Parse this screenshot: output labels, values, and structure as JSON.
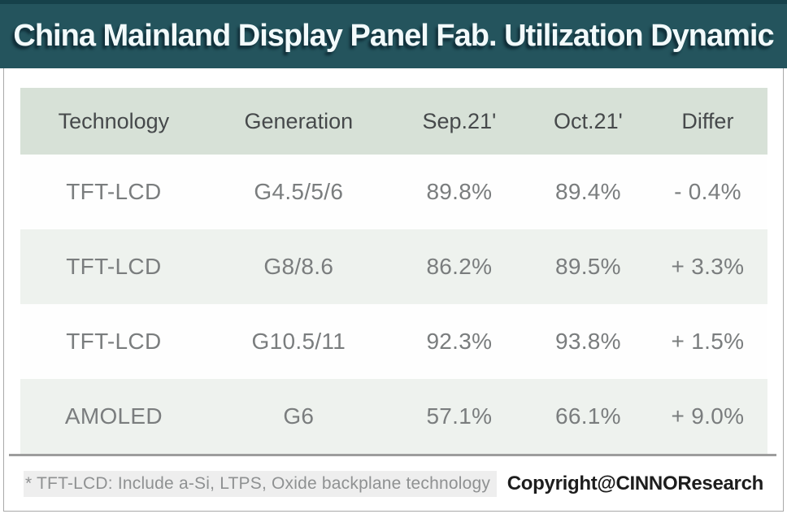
{
  "title": "China Mainland Display Panel Fab. Utilization Dynamic",
  "chart_data": {
    "type": "table",
    "title": "China Mainland Display Panel Fab. Utilization Dynamic",
    "columns": [
      "Technology",
      "Generation",
      "Sep.21'",
      "Oct.21'",
      "Differ"
    ],
    "rows": [
      [
        "TFT-LCD",
        "G4.5/5/6",
        "89.8%",
        "89.4%",
        "- 0.4%"
      ],
      [
        "TFT-LCD",
        "G8/8.6",
        "86.2%",
        "89.5%",
        "+ 3.3%"
      ],
      [
        "TFT-LCD",
        "G10.5/11",
        "92.3%",
        "93.8%",
        "+ 1.5%"
      ],
      [
        "AMOLED",
        "G6",
        "57.1%",
        "66.1%",
        "+ 9.0%"
      ]
    ]
  },
  "footer": {
    "note": "* TFT-LCD: Include a-Si, LTPS, Oxide backplane technology",
    "copyright": "Copyright@CINNOResearch"
  },
  "colors": {
    "banner_background": "#24545d",
    "banner_text": "#f2fafb",
    "header_row_background": "#d7e1d7",
    "alt_row_background": "#eef2ee",
    "header_text": "#46494b",
    "body_text": "#7a7d7e",
    "divider": "#9d9d9d"
  }
}
